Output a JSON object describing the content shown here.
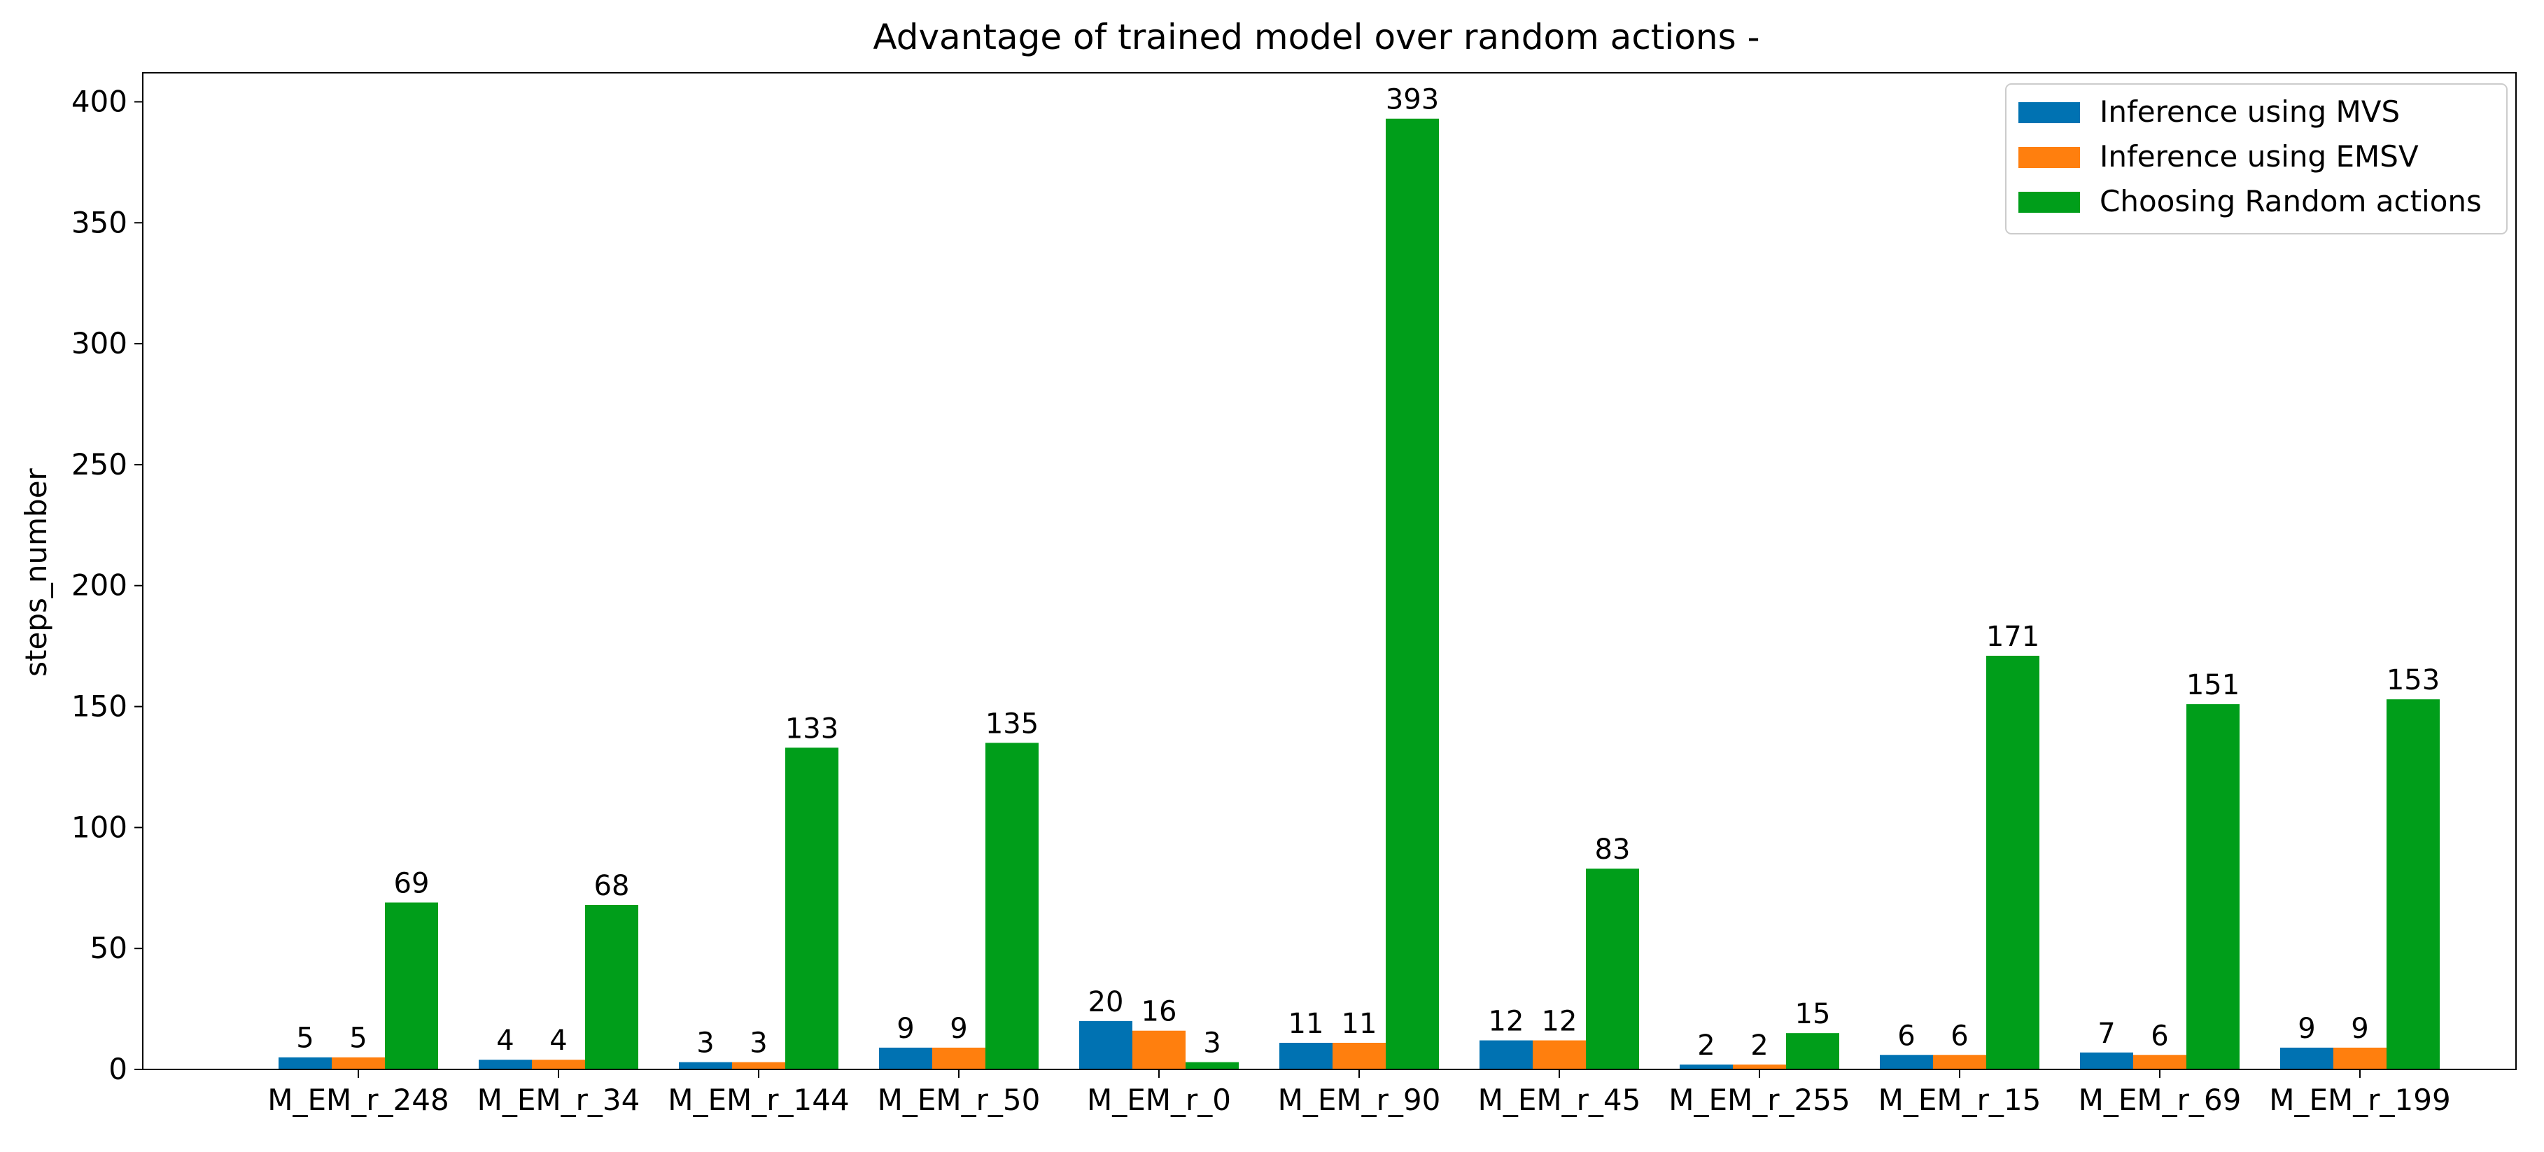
{
  "chart_data": {
    "type": "bar",
    "title": "Advantage of trained model over random actions -",
    "xlabel": "",
    "ylabel": "steps_number",
    "ylim": [
      0,
      412
    ],
    "yticks": [
      0,
      50,
      100,
      150,
      200,
      250,
      300,
      350,
      400
    ],
    "ytick_labels": [
      "0",
      "50",
      "100",
      "150",
      "200",
      "250",
      "300",
      "350",
      "400"
    ],
    "grid": false,
    "legend_position": "top-right",
    "categories": [
      "M_EM_r_248",
      "M_EM_r_34",
      "M_EM_r_144",
      "M_EM_r_50",
      "M_EM_r_0",
      "M_EM_r_90",
      "M_EM_r_45",
      "M_EM_r_255",
      "M_EM_r_15",
      "M_EM_r_69",
      "M_EM_r_199"
    ],
    "series": [
      {
        "name": "Inference using MVS",
        "color": "#0072b2",
        "values": [
          5,
          4,
          3,
          9,
          20,
          11,
          12,
          2,
          6,
          7,
          9
        ],
        "labels": [
          "5",
          "4",
          "3",
          "9",
          "20",
          "11",
          "12",
          "2",
          "6",
          "7",
          "9"
        ]
      },
      {
        "name": "Inference using EMSV",
        "color": "#ff7f0e",
        "values": [
          5,
          4,
          3,
          9,
          16,
          11,
          12,
          2,
          6,
          6,
          9
        ],
        "labels": [
          "5",
          "4",
          "3",
          "9",
          "16",
          "11",
          "12",
          "2",
          "6",
          "6",
          "9"
        ]
      },
      {
        "name": "Choosing Random actions",
        "color": "#009e1a",
        "values": [
          69,
          68,
          133,
          135,
          3,
          393,
          83,
          15,
          171,
          151,
          153
        ],
        "labels": [
          "69",
          "68",
          "133",
          "135",
          "3",
          "393",
          "83",
          "15",
          "171",
          "151",
          "153"
        ]
      }
    ]
  }
}
